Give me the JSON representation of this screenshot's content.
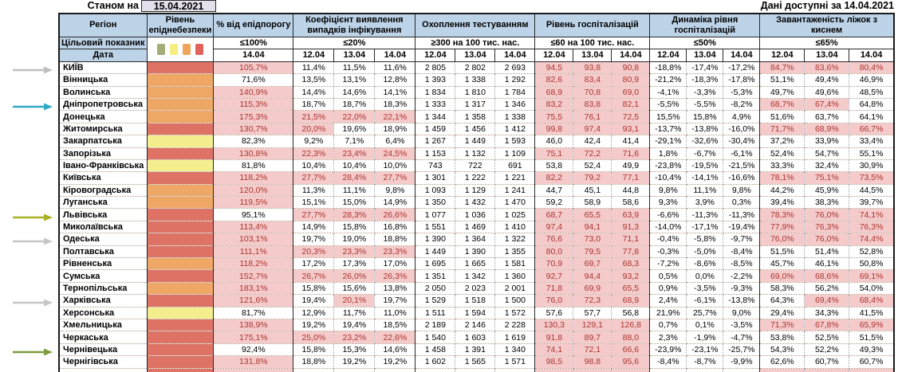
{
  "meta": {
    "as_of_label": "Станом на",
    "as_of_date": "15.04.2021",
    "available_label": "Дані доступні за",
    "available_date": "14.04.2021"
  },
  "header": {
    "region": "Регіон",
    "target_label": "Цільовий показник",
    "date_label": "Дата",
    "groups": [
      {
        "title": "Рівень епіднебезпеки"
      },
      {
        "title": "% від епідпорогу",
        "target": "≤100%",
        "dates": [
          "14.04"
        ]
      },
      {
        "title": "Коефіцієнт виявлення випадків інфікування",
        "target": "≤20%",
        "dates": [
          "12.04",
          "13.04",
          "14.04"
        ]
      },
      {
        "title": "Охоплення тестуванням",
        "target": "≥300 на 100 тис. нас.",
        "dates": [
          "12.04",
          "13.04",
          "14.04"
        ]
      },
      {
        "title": "Рівень госпіталізацій",
        "target": "≤60 на 100 тис. нас.",
        "dates": [
          "12.04",
          "13.04",
          "14.04"
        ]
      },
      {
        "title": "Динаміка рівня госпіталізацій",
        "target": "≤50%",
        "dates": [
          "12.04",
          "13.04",
          "14.04"
        ]
      },
      {
        "title": "Завантаженість ліжок з киснем",
        "target": "≤65%",
        "dates": [
          "12.04",
          "13.04",
          "14.04"
        ]
      }
    ],
    "legend_colors": [
      "#a3ad7a",
      "#f6ee7e",
      "#f0a55c",
      "#e2625d"
    ]
  },
  "colors": {
    "header_bg": "#bdd3e8",
    "highlight_bg": "#f5caca",
    "highlight_text": "#a93530",
    "zone": {
      "red": "#dd7265",
      "orange": "#efa765",
      "yellow": "#f5ee8e"
    }
  },
  "thresholds": {
    "pct_max": 100,
    "coef_max": 20,
    "test_min": 300,
    "hosp_max": 60,
    "dyn_max": 50,
    "oxy_max": 65
  },
  "arrows": [
    {
      "row_index": 0,
      "target": "КИЇВ",
      "color": "#bfbfbf"
    },
    {
      "row_index": 3,
      "target": "Дніпропетровська",
      "color": "#31a8c4"
    },
    {
      "row_index": 12,
      "target": "Львівська",
      "color": "#a9b223"
    },
    {
      "row_index": 14,
      "target": "Одеська",
      "color": "#c6c6c6"
    },
    {
      "row_index": 19,
      "target": "Харківська",
      "color": "#c6c6c6"
    },
    {
      "row_index": 23,
      "target": "Чернівецька",
      "color": "#7e9c3d"
    }
  ],
  "rows": [
    {
      "region": "КИЇВ",
      "zone": "red",
      "pct": "105,7%",
      "coef": [
        "11,4%",
        "11,5%",
        "11,6%"
      ],
      "test": [
        "2 805",
        "2 802",
        "2 693"
      ],
      "hosp": [
        "94,5",
        "93,8",
        "90,8"
      ],
      "dyn": [
        "-18,8%",
        "-17,4%",
        "-17,2%"
      ],
      "oxy": [
        "84,7%",
        "83,6%",
        "80,4%"
      ]
    },
    {
      "region": "Вінницька",
      "zone": "orange",
      "pct": "71,6%",
      "coef": [
        "13,5%",
        "13,1%",
        "12,8%"
      ],
      "test": [
        "1 393",
        "1 338",
        "1 292"
      ],
      "hosp": [
        "82,6",
        "83,4",
        "80,9"
      ],
      "dyn": [
        "-21,2%",
        "-18,3%",
        "-17,8%"
      ],
      "oxy": [
        "51,1%",
        "49,4%",
        "46,9%"
      ]
    },
    {
      "region": "Волинська",
      "zone": "orange",
      "pct": "140,9%",
      "coef": [
        "14,4%",
        "14,6%",
        "14,1%"
      ],
      "test": [
        "1 834",
        "1 810",
        "1 784"
      ],
      "hosp": [
        "68,9",
        "70,8",
        "69,0"
      ],
      "dyn": [
        "-4,1%",
        "-3,3%",
        "-5,3%"
      ],
      "oxy": [
        "49,7%",
        "49,6%",
        "48,5%"
      ]
    },
    {
      "region": "Дніпропетровська",
      "zone": "orange",
      "pct": "115,3%",
      "coef": [
        "18,7%",
        "18,7%",
        "18,3%"
      ],
      "test": [
        "1 333",
        "1 317",
        "1 346"
      ],
      "hosp": [
        "83,2",
        "83,8",
        "82,1"
      ],
      "dyn": [
        "-5,5%",
        "-5,5%",
        "-8,2%"
      ],
      "oxy": [
        "68,7%",
        "67,4%",
        "64,8%"
      ]
    },
    {
      "region": "Донецька",
      "zone": "orange",
      "pct": "175,3%",
      "coef": [
        "21,5%",
        "22,0%",
        "22,1%"
      ],
      "test": [
        "1 344",
        "1 358",
        "1 338"
      ],
      "hosp": [
        "75,5",
        "76,1",
        "72,5"
      ],
      "dyn": [
        "15,5%",
        "15,8%",
        "4,9%"
      ],
      "oxy": [
        "51,6%",
        "63,7%",
        "64,1%"
      ]
    },
    {
      "region": "Житомирська",
      "zone": "red",
      "pct": "130,7%",
      "coef": [
        "20,0%",
        "19,6%",
        "18,9%"
      ],
      "test": [
        "1 459",
        "1 456",
        "1 412"
      ],
      "hosp": [
        "99,8",
        "97,4",
        "93,1"
      ],
      "dyn": [
        "-13,7%",
        "-13,8%",
        "-16,0%"
      ],
      "oxy": [
        "71,7%",
        "68,9%",
        "66,7%"
      ]
    },
    {
      "region": "Закарпатська",
      "zone": "yellow",
      "pct": "82,3%",
      "coef": [
        "9,2%",
        "7,1%",
        "6,4%"
      ],
      "test": [
        "1 267",
        "1 449",
        "1 593"
      ],
      "hosp": [
        "46,0",
        "42,4",
        "41,4"
      ],
      "dyn": [
        "-29,1%",
        "-32,6%",
        "-30,4%"
      ],
      "oxy": [
        "37,2%",
        "33,9%",
        "33,4%"
      ]
    },
    {
      "region": "Запорізька",
      "zone": "red",
      "pct": "130,8%",
      "coef": [
        "22,3%",
        "23,4%",
        "24,5%"
      ],
      "test": [
        "1 153",
        "1 132",
        "1 109"
      ],
      "hosp": [
        "75,1",
        "72,2",
        "71,6"
      ],
      "dyn": [
        "1,8%",
        "-6,7%",
        "-6,1%"
      ],
      "oxy": [
        "52,4%",
        "54,7%",
        "55,1%"
      ]
    },
    {
      "region": "Івано-Франківська",
      "zone": "yellow",
      "pct": "81,8%",
      "coef": [
        "10,4%",
        "10,4%",
        "10,0%"
      ],
      "test": [
        "743",
        "722",
        "691"
      ],
      "hosp": [
        "53,8",
        "52,4",
        "49,9"
      ],
      "dyn": [
        "-23,8%",
        "-19,5%",
        "-21,5%"
      ],
      "oxy": [
        "33,3%",
        "32,4%",
        "30,9%"
      ]
    },
    {
      "region": "Київська",
      "zone": "red",
      "pct": "118,2%",
      "coef": [
        "27,7%",
        "28,4%",
        "27,7%"
      ],
      "test": [
        "1 301",
        "1 222",
        "1 221"
      ],
      "hosp": [
        "82,2",
        "79,2",
        "77,1"
      ],
      "dyn": [
        "-10,4%",
        "-14,1%",
        "-16,6%"
      ],
      "oxy": [
        "78,1%",
        "75,1%",
        "73,5%"
      ]
    },
    {
      "region": "Кіровоградська",
      "zone": "orange",
      "pct": "120,0%",
      "coef": [
        "11,3%",
        "11,1%",
        "9,8%"
      ],
      "test": [
        "1 093",
        "1 129",
        "1 241"
      ],
      "hosp": [
        "44,7",
        "45,1",
        "44,8"
      ],
      "dyn": [
        "9,8%",
        "11,1%",
        "9,8%"
      ],
      "oxy": [
        "44,2%",
        "45,9%",
        "44,5%"
      ]
    },
    {
      "region": "Луганська",
      "zone": "orange",
      "pct": "119,5%",
      "coef": [
        "15,1%",
        "15,0%",
        "14,9%"
      ],
      "test": [
        "1 350",
        "1 432",
        "1 470"
      ],
      "hosp": [
        "59,2",
        "58,9",
        "58,6"
      ],
      "dyn": [
        "9,3%",
        "3,9%",
        "0,3%"
      ],
      "oxy": [
        "39,4%",
        "38,3%",
        "39,7%"
      ]
    },
    {
      "region": "Львівська",
      "zone": "red",
      "pct": "95,1%",
      "coef": [
        "27,7%",
        "28,3%",
        "26,6%"
      ],
      "test": [
        "1 077",
        "1 036",
        "1 025"
      ],
      "hosp": [
        "68,7",
        "65,5",
        "63,9"
      ],
      "dyn": [
        "-6,6%",
        "-11,3%",
        "-11,3%"
      ],
      "oxy": [
        "78,3%",
        "76,0%",
        "74,1%"
      ]
    },
    {
      "region": "Миколаївська",
      "zone": "red",
      "pct": "113,4%",
      "coef": [
        "14,9%",
        "15,8%",
        "16,8%"
      ],
      "test": [
        "1 551",
        "1 469",
        "1 410"
      ],
      "hosp": [
        "97,4",
        "94,1",
        "91,3"
      ],
      "dyn": [
        "-14,0%",
        "-17,1%",
        "-19,4%"
      ],
      "oxy": [
        "77,9%",
        "76,3%",
        "76,3%"
      ]
    },
    {
      "region": "Одеська",
      "zone": "red",
      "pct": "103,1%",
      "coef": [
        "19,7%",
        "19,0%",
        "18,8%"
      ],
      "test": [
        "1 390",
        "1 364",
        "1 322"
      ],
      "hosp": [
        "76,6",
        "73,0",
        "71,1"
      ],
      "dyn": [
        "-0,4%",
        "-5,8%",
        "-9,7%"
      ],
      "oxy": [
        "76,0%",
        "76,0%",
        "74,4%"
      ]
    },
    {
      "region": "Полтавська",
      "zone": "red",
      "pct": "111,1%",
      "coef": [
        "20,3%",
        "23,3%",
        "23,3%"
      ],
      "test": [
        "1 449",
        "1 390",
        "1 355"
      ],
      "hosp": [
        "80,0",
        "79,5",
        "77,8"
      ],
      "dyn": [
        "-0,3%",
        "-5,0%",
        "-8,4%"
      ],
      "oxy": [
        "51,5%",
        "51,4%",
        "52,8%"
      ]
    },
    {
      "region": "Рівненська",
      "zone": "orange",
      "pct": "118,2%",
      "coef": [
        "17,2%",
        "17,3%",
        "17,0%"
      ],
      "test": [
        "1 695",
        "1 665",
        "1 581"
      ],
      "hosp": [
        "70,9",
        "69,7",
        "68,3"
      ],
      "dyn": [
        "-7,2%",
        "-8,6%",
        "-8,5%"
      ],
      "oxy": [
        "45,7%",
        "46,1%",
        "50,8%"
      ]
    },
    {
      "region": "Сумська",
      "zone": "red",
      "pct": "152,7%",
      "coef": [
        "26,7%",
        "26,0%",
        "26,3%"
      ],
      "test": [
        "1 351",
        "1 342",
        "1 360"
      ],
      "hosp": [
        "92,7",
        "94,4",
        "93,2"
      ],
      "dyn": [
        "0,5%",
        "0,0%",
        "-2,2%"
      ],
      "oxy": [
        "69,0%",
        "68,6%",
        "69,1%"
      ]
    },
    {
      "region": "Тернопільська",
      "zone": "orange",
      "pct": "183,1%",
      "coef": [
        "15,8%",
        "15,6%",
        "13,8%"
      ],
      "test": [
        "2 050",
        "2 023",
        "2 001"
      ],
      "hosp": [
        "71,8",
        "69,9",
        "65,5"
      ],
      "dyn": [
        "0,9%",
        "-3,5%",
        "-9,3%"
      ],
      "oxy": [
        "58,3%",
        "56,2%",
        "54,0%"
      ]
    },
    {
      "region": "Харківська",
      "zone": "red",
      "pct": "121,6%",
      "coef": [
        "19,4%",
        "20,1%",
        "19,7%"
      ],
      "test": [
        "1 529",
        "1 518",
        "1 500"
      ],
      "hosp": [
        "76,0",
        "72,3",
        "68,9"
      ],
      "dyn": [
        "2,4%",
        "-6,1%",
        "-13,8%"
      ],
      "oxy": [
        "64,3%",
        "69,4%",
        "68,4%"
      ]
    },
    {
      "region": "Херсонська",
      "zone": "yellow",
      "pct": "81,7%",
      "coef": [
        "12,9%",
        "11,7%",
        "11,0%"
      ],
      "test": [
        "1 511",
        "1 594",
        "1 572"
      ],
      "hosp": [
        "57,6",
        "57,7",
        "56,8"
      ],
      "dyn": [
        "21,9%",
        "25,7%",
        "9,0%"
      ],
      "oxy": [
        "29,4%",
        "34,3%",
        "41,5%"
      ]
    },
    {
      "region": "Хмельницька",
      "zone": "red",
      "pct": "138,9%",
      "coef": [
        "19,2%",
        "19,4%",
        "18,5%"
      ],
      "test": [
        "2 189",
        "2 146",
        "2 228"
      ],
      "hosp": [
        "130,3",
        "129,1",
        "126,8"
      ],
      "dyn": [
        "0,7%",
        "0,1%",
        "-3,5%"
      ],
      "oxy": [
        "71,3%",
        "67,8%",
        "65,9%"
      ]
    },
    {
      "region": "Черкаська",
      "zone": "red",
      "pct": "175,1%",
      "coef": [
        "25,0%",
        "23,2%",
        "22,6%"
      ],
      "test": [
        "1 540",
        "1 603",
        "1 619"
      ],
      "hosp": [
        "91,8",
        "89,7",
        "88,0"
      ],
      "dyn": [
        "2,3%",
        "-1,9%",
        "-4,7%"
      ],
      "oxy": [
        "53,8%",
        "52,5%",
        "51,5%"
      ]
    },
    {
      "region": "Чернівецька",
      "zone": "red",
      "pct": "92,4%",
      "coef": [
        "15,8%",
        "15,3%",
        "14,6%"
      ],
      "test": [
        "1 458",
        "1 391",
        "1 340"
      ],
      "hosp": [
        "74,1",
        "72,1",
        "66,6"
      ],
      "dyn": [
        "-23,9%",
        "-23,1%",
        "-25,7%"
      ],
      "oxy": [
        "54,3%",
        "52,2%",
        "49,3%"
      ]
    },
    {
      "region": "Чернігівська",
      "zone": "red",
      "pct": "131,8%",
      "coef": [
        "18,8%",
        "19,2%",
        "19,2%"
      ],
      "test": [
        "1 602",
        "1 565",
        "1 571"
      ],
      "hosp": [
        "98,5",
        "98,8",
        "95,6"
      ],
      "dyn": [
        "-8,4%",
        "-8,7%",
        "-9,9%"
      ],
      "oxy": [
        "62,6%",
        "60,7%",
        "60,7%"
      ]
    }
  ],
  "partial_row": {
    "zone": "red"
  }
}
